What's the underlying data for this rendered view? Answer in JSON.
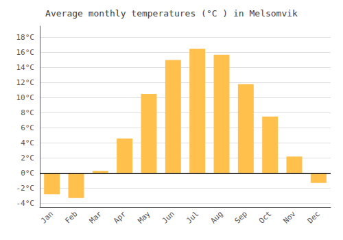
{
  "chart_data": {
    "type": "bar",
    "title": "Average monthly temperatures (°C ) in Melsomvik",
    "categories": [
      "Jan",
      "Feb",
      "Mar",
      "Apr",
      "May",
      "Jun",
      "Jul",
      "Aug",
      "Sep",
      "Oct",
      "Nov",
      "Dec"
    ],
    "values": [
      -2.8,
      -3.3,
      0.3,
      4.6,
      10.5,
      15.0,
      16.5,
      15.7,
      11.8,
      7.5,
      2.2,
      -1.3
    ],
    "color": "#FFC04C",
    "ylim": [
      -4.5,
      19.5
    ],
    "yticks": [
      {
        "value": -4,
        "label": "-4°C"
      },
      {
        "value": -2,
        "label": "-2°C"
      },
      {
        "value": 0,
        "label": "0°C"
      },
      {
        "value": 2,
        "label": "2°C"
      },
      {
        "value": 4,
        "label": "4°C"
      },
      {
        "value": 6,
        "label": "6°C"
      },
      {
        "value": 8,
        "label": "8°C"
      },
      {
        "value": 10,
        "label": "10°C"
      },
      {
        "value": 12,
        "label": "12°C"
      },
      {
        "value": 14,
        "label": "14°C"
      },
      {
        "value": 16,
        "label": "16°C"
      },
      {
        "value": 18,
        "label": "18°C"
      }
    ],
    "grid": true
  }
}
